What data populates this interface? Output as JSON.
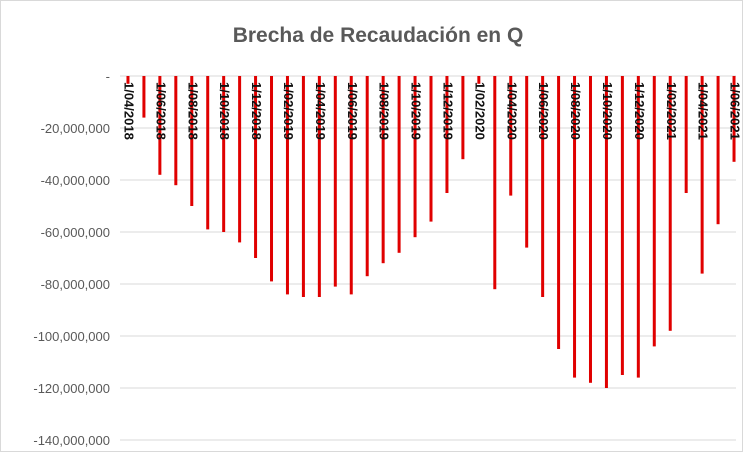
{
  "chart_data": {
    "type": "bar",
    "title": "Brecha de Recaudación en Q",
    "categories": [
      "1/04/2018",
      null,
      "1/06/2018",
      null,
      "1/08/2018",
      null,
      "1/10/2018",
      null,
      "1/12/2018",
      null,
      "1/02/2019",
      null,
      "1/04/2019",
      null,
      "1/06/2019",
      null,
      "1/08/2019",
      null,
      "1/10/2019",
      null,
      "1/12/2019",
      null,
      "1/02/2020",
      null,
      "1/04/2020",
      null,
      "1/06/2020",
      null,
      "1/08/2020",
      null,
      "1/10/2020",
      null,
      "1/12/2020",
      null,
      "1/02/2021",
      null,
      "1/04/2021",
      null,
      "1/06/2021"
    ],
    "values": [
      -3000000,
      -16000000,
      -38000000,
      -42000000,
      -50000000,
      -59000000,
      -60000000,
      -64000000,
      -70000000,
      -79000000,
      -84000000,
      -85000000,
      -85000000,
      -81000000,
      -84000000,
      -77000000,
      -72000000,
      -68000000,
      -62000000,
      -56000000,
      -45000000,
      -32000000,
      -3000000,
      -82000000,
      -46000000,
      -66000000,
      -85000000,
      -105000000,
      -116000000,
      -118000000,
      -120000000,
      -115000000,
      -116000000,
      -104000000,
      -98000000,
      -45000000,
      -76000000,
      -57000000,
      -33000000
    ],
    "color": "#e00000",
    "ylim": [
      -140000000,
      0
    ],
    "yticks": [
      {
        "value": 0,
        "label": "-"
      },
      {
        "value": -20000000,
        "label": "-20,000,000"
      },
      {
        "value": -40000000,
        "label": "-40,000,000"
      },
      {
        "value": -60000000,
        "label": "-60,000,000"
      },
      {
        "value": -80000000,
        "label": "-80,000,000"
      },
      {
        "value": -100000000,
        "label": "-100,000,000"
      },
      {
        "value": -120000000,
        "label": "-120,000,000"
      },
      {
        "value": -140000000,
        "label": "-140,000,000"
      }
    ],
    "grid": true
  }
}
